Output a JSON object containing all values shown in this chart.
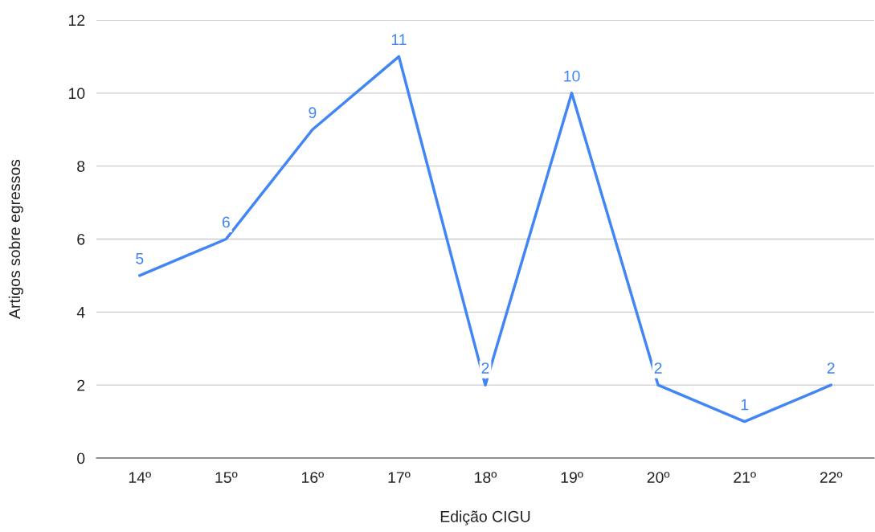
{
  "chart_data": {
    "type": "line",
    "xlabel": "Edição CIGU",
    "ylabel": "Artigos sobre egressos",
    "categories": [
      "14º",
      "15º",
      "16º",
      "17º",
      "18º",
      "19º",
      "20º",
      "21º",
      "22º"
    ],
    "series": [
      {
        "color": "#4285f4",
        "values": [
          5,
          6,
          9,
          11,
          2,
          10,
          2,
          1,
          2
        ]
      }
    ],
    "ylim": [
      0,
      12
    ],
    "yticks": [
      0,
      2,
      4,
      6,
      8,
      10,
      12
    ],
    "grid": "y",
    "data_labels": true,
    "marker": "none",
    "line_style": "solid"
  }
}
